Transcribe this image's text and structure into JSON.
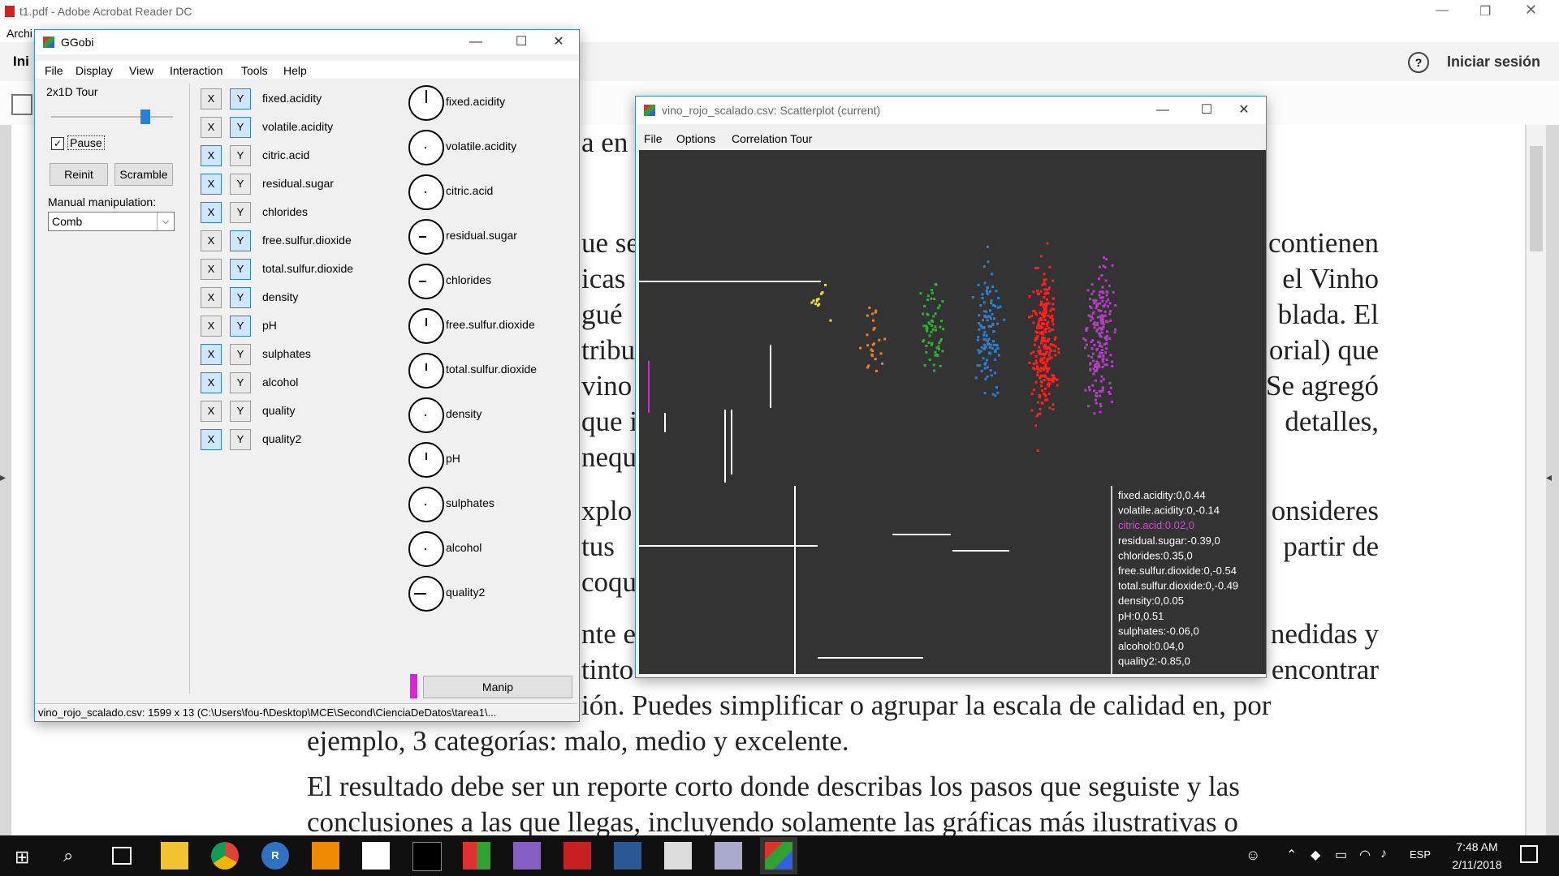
{
  "acrobat": {
    "title": "t1.pdf - Adobe Acrobat Reader DC",
    "menu_first": "Archi",
    "tab_first": "Ini",
    "signin": "Iniciar sesión",
    "help_icon": "?"
  },
  "doc": {
    "frag_top": "a en",
    "lines": [
      {
        "left": "ue se",
        "right": "contienen"
      },
      {
        "left": "icas",
        "right": "el Vinho"
      },
      {
        "left": "gué",
        "right": "blada. El"
      },
      {
        "left": "tribu",
        "right": "orial) que"
      },
      {
        "left": "vino",
        "right": "Se agregó"
      },
      {
        "left": "que i",
        "right": "detalles,"
      },
      {
        "left": "nequ",
        "right": ""
      },
      {
        "left": "xplo",
        "right": "onsideres"
      },
      {
        "left": "tus",
        "right": "partir de"
      },
      {
        "left": "coqu",
        "right": ""
      },
      {
        "left": "nte e",
        "right": "nedidas y"
      },
      {
        "left": "tinto",
        "right": "encontrar"
      },
      {
        "left": "ión. Puedes simplificar o agrupar la escala de calidad en, por",
        "right": ""
      }
    ],
    "full_lines": [
      "ejemplo, 3 categorías: malo, medio y excelente.",
      "El resultado debe ser un reporte corto donde describas los pasos que seguiste y las",
      "conclusiones a las que llegas, incluyendo solamente las gráficas más ilustrativas o"
    ]
  },
  "ggobi": {
    "title": "GGobi",
    "menu": [
      "File",
      "Display",
      "View",
      "Interaction",
      "Tools",
      "Help"
    ],
    "mode": "2x1D Tour",
    "pause_label": "Pause",
    "pause_checked": true,
    "reinit_label": "Reinit",
    "scramble_label": "Scramble",
    "manual_label": "Manual manipulation:",
    "manual_value": "Comb",
    "manip_label": "Manip",
    "status": "vino_rojo_scalado.csv: 1599 x 13 (C:\\Users\\fou-f\\Desktop\\MCE\\Second\\CienciaDeDatos\\tarea1\\...",
    "variables": [
      {
        "name": "fixed.acidity",
        "x": false,
        "y": true
      },
      {
        "name": "volatile.acidity",
        "x": false,
        "y": true
      },
      {
        "name": "citric.acid",
        "x": true,
        "y": false
      },
      {
        "name": "residual.sugar",
        "x": true,
        "y": false
      },
      {
        "name": "chlorides",
        "x": true,
        "y": false
      },
      {
        "name": "free.sulfur.dioxide",
        "x": false,
        "y": true
      },
      {
        "name": "total.sulfur.dioxide",
        "x": false,
        "y": true
      },
      {
        "name": "density",
        "x": false,
        "y": true
      },
      {
        "name": "pH",
        "x": false,
        "y": true
      },
      {
        "name": "sulphates",
        "x": true,
        "y": false
      },
      {
        "name": "alcohol",
        "x": true,
        "y": false
      },
      {
        "name": "quality",
        "x": false,
        "y": false
      },
      {
        "name": "quality2",
        "x": true,
        "y": false
      }
    ],
    "dials": [
      "fixed.acidity",
      "volatile.acidity",
      "citric.acid",
      "residual.sugar",
      "chlorides",
      "free.sulfur.dioxide",
      "total.sulfur.dioxide",
      "density",
      "pH",
      "sulphates",
      "alcohol",
      "quality2"
    ]
  },
  "scatter": {
    "title": "vino_rojo_scalado.csv: Scatterplot (current)",
    "menu": [
      "File",
      "Options",
      "Correlation Tour"
    ],
    "readout": [
      {
        "text": "fixed.acidity:0,0.44",
        "color": "#ffffff"
      },
      {
        "text": "volatile.acidity:0,-0.14",
        "color": "#ffffff"
      },
      {
        "text": "citric.acid:0.02,0",
        "color": "#e040e0"
      },
      {
        "text": "residual.sugar:-0.39,0",
        "color": "#ffffff"
      },
      {
        "text": "chlorides:0.35,0",
        "color": "#ffffff"
      },
      {
        "text": "free.sulfur.dioxide:0,-0.54",
        "color": "#ffffff"
      },
      {
        "text": "total.sulfur.dioxide:0,-0.49",
        "color": "#ffffff"
      },
      {
        "text": "density:0,0.05",
        "color": "#ffffff"
      },
      {
        "text": "pH:0,0.51",
        "color": "#ffffff"
      },
      {
        "text": "sulphates:-0.06,0",
        "color": "#ffffff"
      },
      {
        "text": "alcohol:0.04,0",
        "color": "#ffffff"
      },
      {
        "text": "quality2:-0.85,0",
        "color": "#ffffff"
      }
    ],
    "clusters": [
      {
        "color": "#f0e020",
        "count": 12
      },
      {
        "color": "#f08020",
        "count": 25
      },
      {
        "color": "#30b030",
        "count": 60
      },
      {
        "color": "#2f7fd0",
        "count": 110
      },
      {
        "color": "#ff2020",
        "count": 260
      },
      {
        "color": "#b040c0",
        "count": 200
      }
    ]
  },
  "taskbar": {
    "time": "7:48 AM",
    "date": "2/11/2018",
    "lang": "ESP"
  }
}
